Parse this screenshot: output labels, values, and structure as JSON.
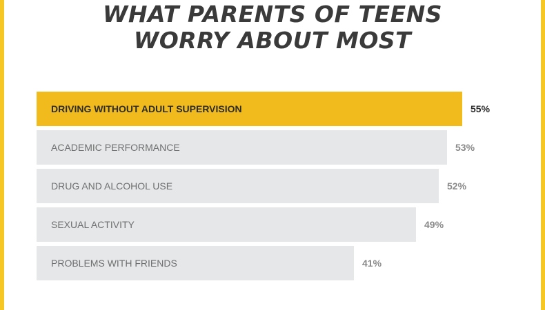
{
  "title_lines": [
    "WHAT PARENTS OF TEENS",
    "WORRY ABOUT MOST"
  ],
  "colors": {
    "accent": "#f2bb1d",
    "bar": "#e5e7e8",
    "frame": "#f6c623"
  },
  "chart_data": {
    "type": "bar",
    "orientation": "horizontal",
    "title": "WHAT PARENTS OF TEENS WORRY ABOUT MOST",
    "categories": [
      "DRIVING WITHOUT ADULT SUPERVISION",
      "ACADEMIC PERFORMANCE",
      "DRUG AND ALCOHOL USE",
      "SEXUAL ACTIVITY",
      "PROBLEMS WITH FRIENDS"
    ],
    "values": [
      55,
      53,
      52,
      49,
      41
    ],
    "value_labels": [
      "55%",
      "53%",
      "52%",
      "49%",
      "41%"
    ],
    "highlight_index": 0,
    "xlabel": "",
    "ylabel": "",
    "grid": false,
    "legend": "none"
  }
}
